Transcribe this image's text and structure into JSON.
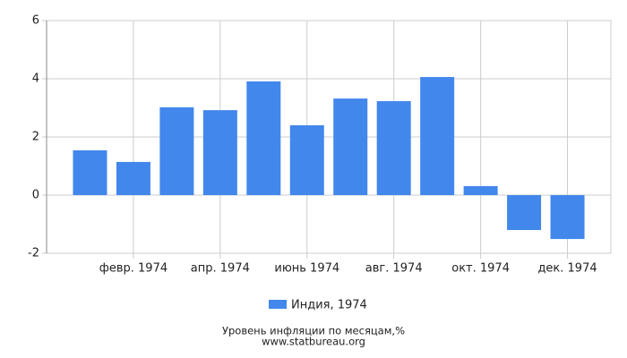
{
  "chart_data": {
    "type": "bar",
    "categories": [
      null,
      "февр. 1974",
      null,
      "апр. 1974",
      null,
      "июнь 1974",
      null,
      "авг. 1974",
      null,
      "окт. 1974",
      null,
      "дек. 1974"
    ],
    "series": [
      {
        "name": "Индия, 1974",
        "color": "#4287ec",
        "values": [
          1.54,
          1.14,
          3.02,
          2.92,
          3.91,
          2.4,
          3.32,
          3.23,
          4.06,
          0.31,
          -1.2,
          -1.51
        ]
      }
    ],
    "ylim": [
      -2,
      6
    ],
    "yticks": [
      -2,
      0,
      2,
      4,
      6
    ],
    "grid": true,
    "footer": [
      "Уровень инфляции по месяцам,%",
      "www.statbureau.org"
    ]
  }
}
